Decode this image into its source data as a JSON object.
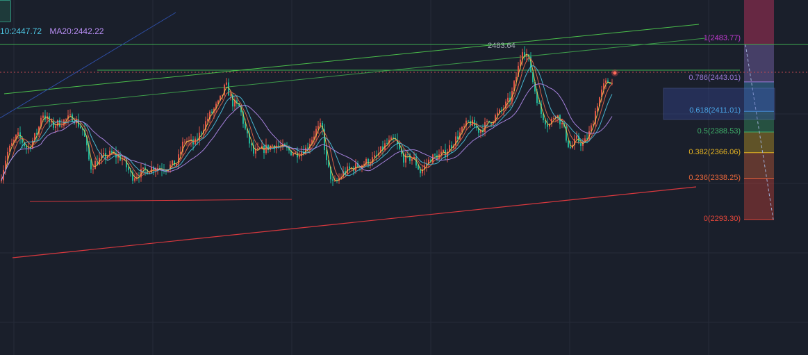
{
  "legend": {
    "ma10": "10:2447.72",
    "ma20": "MA20:2442.22",
    "ma10_color": "#4cc4e0",
    "ma20_color": "#b58cf0"
  },
  "peak_label": "2483.64",
  "fib_levels": [
    {
      "ratio": "1",
      "price": 2483.77,
      "label": "1(2483.77)",
      "color": "#c23bd0"
    },
    {
      "ratio": "0.786",
      "price": 2443.01,
      "label": "0.786(2443.01)",
      "color": "#9a7ad8"
    },
    {
      "ratio": "0.618",
      "price": 2411.01,
      "label": "0.618(2411.01)",
      "color": "#4aa6e8"
    },
    {
      "ratio": "0.5",
      "price": 2388.53,
      "label": "0.5(2388.53)",
      "color": "#3fb06a"
    },
    {
      "ratio": "0.382",
      "price": 2366.06,
      "label": "0.382(2366.06)",
      "color": "#e6b422"
    },
    {
      "ratio": "0.236",
      "price": 2338.25,
      "label": "0.236(2338.25)",
      "color": "#e8663a"
    },
    {
      "ratio": "0",
      "price": 2293.3,
      "label": "0(2293.30)",
      "color": "#e8473a"
    }
  ],
  "chart_data": {
    "type": "line",
    "ylim": [
      2235,
      2510
    ],
    "grid": true,
    "candle_colors": {
      "up": "#e05547",
      "down": "#1fb59a"
    },
    "ma_colors": [
      "#f2c94c",
      "#e8664a",
      "#4cc4e0",
      "#b58cf0"
    ],
    "anchors": [
      [
        0,
        2335
      ],
      [
        10,
        2365
      ],
      [
        25,
        2385
      ],
      [
        40,
        2370
      ],
      [
        55,
        2390
      ],
      [
        60,
        2410
      ],
      [
        75,
        2395
      ],
      [
        90,
        2400
      ],
      [
        105,
        2405
      ],
      [
        120,
        2390
      ],
      [
        130,
        2350
      ],
      [
        145,
        2360
      ],
      [
        160,
        2365
      ],
      [
        175,
        2360
      ],
      [
        190,
        2340
      ],
      [
        205,
        2345
      ],
      [
        220,
        2350
      ],
      [
        240,
        2350
      ],
      [
        255,
        2355
      ],
      [
        265,
        2380
      ],
      [
        280,
        2375
      ],
      [
        300,
        2405
      ],
      [
        315,
        2420
      ],
      [
        325,
        2440
      ],
      [
        335,
        2420
      ],
      [
        345,
        2415
      ],
      [
        355,
        2385
      ],
      [
        365,
        2365
      ],
      [
        380,
        2370
      ],
      [
        395,
        2375
      ],
      [
        410,
        2370
      ],
      [
        425,
        2365
      ],
      [
        440,
        2370
      ],
      [
        455,
        2390
      ],
      [
        463,
        2395
      ],
      [
        470,
        2355
      ],
      [
        480,
        2330
      ],
      [
        495,
        2345
      ],
      [
        510,
        2350
      ],
      [
        525,
        2355
      ],
      [
        540,
        2360
      ],
      [
        555,
        2375
      ],
      [
        568,
        2380
      ],
      [
        580,
        2360
      ],
      [
        595,
        2360
      ],
      [
        605,
        2345
      ],
      [
        620,
        2360
      ],
      [
        640,
        2365
      ],
      [
        660,
        2385
      ],
      [
        675,
        2400
      ],
      [
        690,
        2390
      ],
      [
        705,
        2400
      ],
      [
        720,
        2410
      ],
      [
        735,
        2425
      ],
      [
        745,
        2455
      ],
      [
        752,
        2480
      ],
      [
        760,
        2470
      ],
      [
        768,
        2440
      ],
      [
        778,
        2410
      ],
      [
        790,
        2395
      ],
      [
        800,
        2410
      ],
      [
        810,
        2395
      ],
      [
        820,
        2370
      ],
      [
        830,
        2380
      ],
      [
        840,
        2375
      ],
      [
        850,
        2390
      ],
      [
        860,
        2420
      ],
      [
        870,
        2440
      ],
      [
        878,
        2445
      ],
      [
        883,
        2438
      ]
    ],
    "peak": {
      "x": 752,
      "price": 2483.64
    }
  }
}
